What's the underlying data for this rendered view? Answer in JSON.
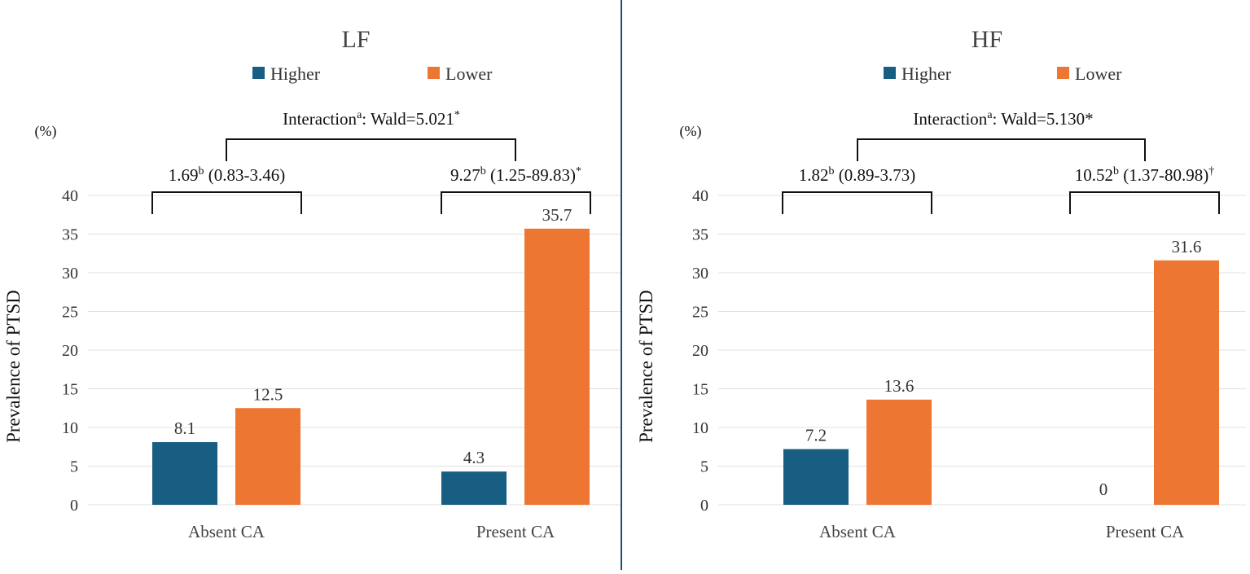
{
  "colors": {
    "higher": "#175E82",
    "lower": "#EE7633",
    "divider": "#1F4E6E"
  },
  "chart_data": [
    {
      "type": "bar",
      "title": "LF",
      "ylabel": "Prevalence of PTSD",
      "unit_label": "(%)",
      "ylim": [
        0,
        40
      ],
      "yticks": [
        0,
        5,
        10,
        15,
        20,
        25,
        30,
        35,
        40
      ],
      "categories": [
        "Absent CA",
        "Present CA"
      ],
      "series": [
        {
          "name": "Higher",
          "values": [
            8.1,
            4.3
          ]
        },
        {
          "name": "Lower",
          "values": [
            12.5,
            35.7
          ]
        }
      ],
      "value_labels": [
        [
          "8.1",
          "4.3"
        ],
        [
          "12.5",
          "35.7"
        ]
      ],
      "interaction": {
        "text": "Interaction",
        "sup": "a",
        "text2": ": Wald=5.021",
        "sup2": "*"
      },
      "group_annotations": [
        {
          "text": "1.69",
          "sup": "b",
          "text2": " (0.83-3.46)",
          "sup2": ""
        },
        {
          "text": "9.27",
          "sup": "b",
          "text2": " (1.25-89.83)",
          "sup2": "*"
        }
      ]
    },
    {
      "type": "bar",
      "title": "HF",
      "ylabel": "Prevalence of PTSD",
      "unit_label": "(%)",
      "ylim": [
        0,
        40
      ],
      "yticks": [
        0,
        5,
        10,
        15,
        20,
        25,
        30,
        35,
        40
      ],
      "categories": [
        "Absent CA",
        "Present CA"
      ],
      "series": [
        {
          "name": "Higher",
          "values": [
            7.2,
            0
          ]
        },
        {
          "name": "Lower",
          "values": [
            13.6,
            31.6
          ]
        }
      ],
      "value_labels": [
        [
          "7.2",
          "0"
        ],
        [
          "13.6",
          "31.6"
        ]
      ],
      "interaction": {
        "text": "Interaction",
        "sup": "a",
        "text2": ": Wald=5.130*",
        "sup2": ""
      },
      "group_annotations": [
        {
          "text": "1.82",
          "sup": "b",
          "text2": " (0.89-3.73)",
          "sup2": ""
        },
        {
          "text": "10.52",
          "sup": "b",
          "text2": " (1.37-80.98)",
          "sup2": "†"
        }
      ]
    }
  ]
}
